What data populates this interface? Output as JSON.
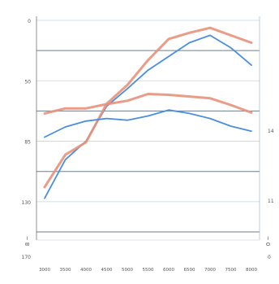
{
  "chart_data": {
    "type": "line",
    "title": "",
    "xlabel": "",
    "ylabel": "",
    "x_ticks": [
      "3000",
      "3500",
      "4000",
      "4500",
      "5000",
      "5500",
      "6000",
      "6500",
      "7000",
      "7500",
      "8000"
    ],
    "y_left_ticks": [
      "0",
      "50",
      "85",
      "130",
      "170"
    ],
    "y_left_ticks_values": [
      0,
      50,
      85,
      130,
      170
    ],
    "y_right_ticks": [
      "0",
      "11",
      "14"
    ],
    "ylim": [
      0,
      170
    ],
    "y_right_lim": [
      0,
      25
    ],
    "left_rotated_label": "8 ~",
    "right_rotated_label": "0 ~",
    "grid": true,
    "legend": "none",
    "series": [
      {
        "color": "#4a8ee0",
        "axis": "left",
        "values": [
          27,
          58,
          73,
          101,
          115,
          130,
          141,
          152,
          158,
          148,
          134
        ]
      },
      {
        "color": "#e8917a",
        "axis": "left",
        "values": [
          36,
          62,
          72,
          103,
          118,
          138,
          155,
          160,
          164,
          158,
          152
        ]
      },
      {
        "color": "#4a8ee0",
        "axis": "right",
        "values": [
          11.2,
          12.4,
          13.1,
          13.4,
          13.2,
          13.7,
          14.4,
          14.0,
          13.4,
          12.5,
          11.9
        ]
      },
      {
        "color": "#e8917a",
        "axis": "right",
        "values": [
          14.0,
          14.6,
          14.6,
          15.1,
          15.5,
          16.3,
          16.2,
          16.0,
          15.8,
          15.0,
          14.1
        ]
      }
    ]
  }
}
